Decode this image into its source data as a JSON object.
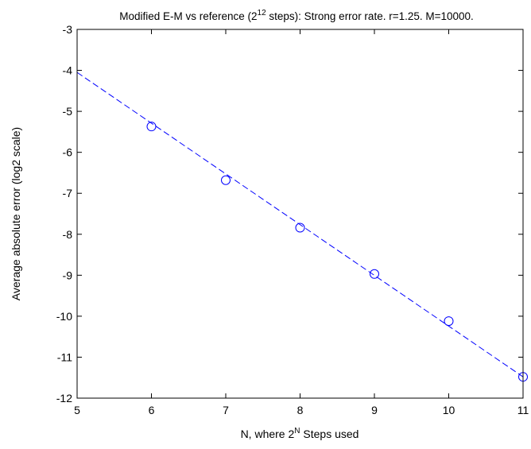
{
  "chart_data": {
    "type": "scatter",
    "title": {
      "prefix": "Modified E-M vs reference (2",
      "sup": "12",
      "suffix": " steps): Strong error rate. r=1.25. M=10000."
    },
    "xlabel": {
      "prefix": "N, where 2",
      "sup": "N",
      "suffix": " Steps used"
    },
    "ylabel": "Average absolute error (log2 scale)",
    "xlim": [
      5,
      11
    ],
    "ylim": [
      -12,
      -3
    ],
    "x_ticks": [
      "5",
      "6",
      "7",
      "8",
      "9",
      "10",
      "11"
    ],
    "y_ticks": [
      "-3",
      "-4",
      "-5",
      "-6",
      "-7",
      "-8",
      "-9",
      "-10",
      "-11",
      "-12"
    ],
    "grid": false,
    "points": {
      "marker": "circle",
      "color": "#0000ff",
      "x": [
        6,
        7,
        8,
        9,
        10,
        11
      ],
      "y": [
        -5.37,
        -6.68,
        -7.84,
        -8.97,
        -10.12,
        -11.48
      ]
    },
    "fit_line": {
      "style": "dashed",
      "color": "#0000ff",
      "x": [
        5,
        11
      ],
      "y": [
        -4.05,
        -11.48
      ]
    }
  }
}
